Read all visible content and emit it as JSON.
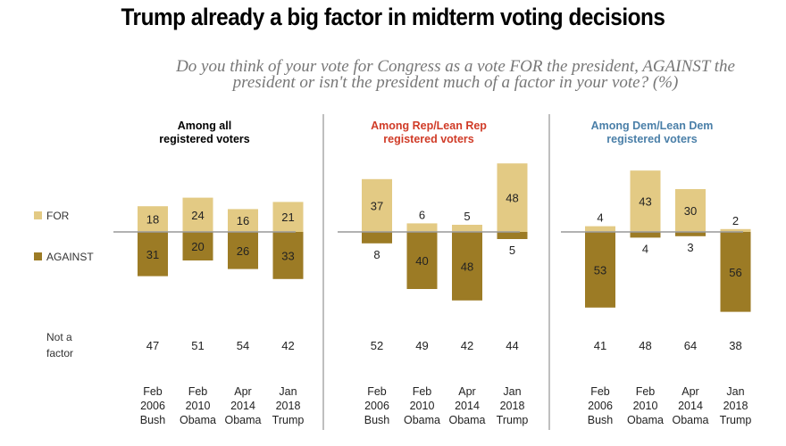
{
  "chart_data": {
    "type": "bar",
    "title": "Trump already a big factor in midterm voting decisions",
    "subtitle": "Do you think of your vote for Congress as a vote FOR the president, AGAINST the president or isn't the president much of a factor in your vote? (%)",
    "legend": {
      "for": "FOR",
      "against": "AGAINST",
      "placement": "left"
    },
    "not_a_factor_label": [
      "Not a",
      "factor"
    ],
    "categories": [
      [
        "Feb",
        "2006",
        "Bush"
      ],
      [
        "Feb",
        "2010",
        "Obama"
      ],
      [
        "Apr",
        "2014",
        "Obama"
      ],
      [
        "Jan",
        "2018",
        "Trump"
      ]
    ],
    "colors": {
      "for": "#E3CA84",
      "against": "#9C7B25",
      "rep": "#D03B27",
      "dem": "#4A7FA8",
      "all": "#000000"
    },
    "panels": [
      {
        "title": [
          "Among all",
          "registered voters"
        ],
        "color_key": "all",
        "for": [
          18,
          24,
          16,
          21
        ],
        "against": [
          31,
          20,
          26,
          33
        ],
        "not_a_factor": [
          47,
          51,
          54,
          42
        ]
      },
      {
        "title": [
          "Among Rep/Lean Rep",
          "registered voters"
        ],
        "color_key": "rep",
        "for": [
          37,
          6,
          5,
          48
        ],
        "against": [
          8,
          40,
          48,
          5
        ],
        "not_a_factor": [
          52,
          49,
          42,
          44
        ]
      },
      {
        "title": [
          "Among Dem/Lean Dem",
          "registered voters"
        ],
        "color_key": "dem",
        "for": [
          4,
          43,
          30,
          2
        ],
        "against": [
          53,
          4,
          3,
          56
        ],
        "not_a_factor": [
          41,
          48,
          64,
          38
        ]
      }
    ]
  }
}
